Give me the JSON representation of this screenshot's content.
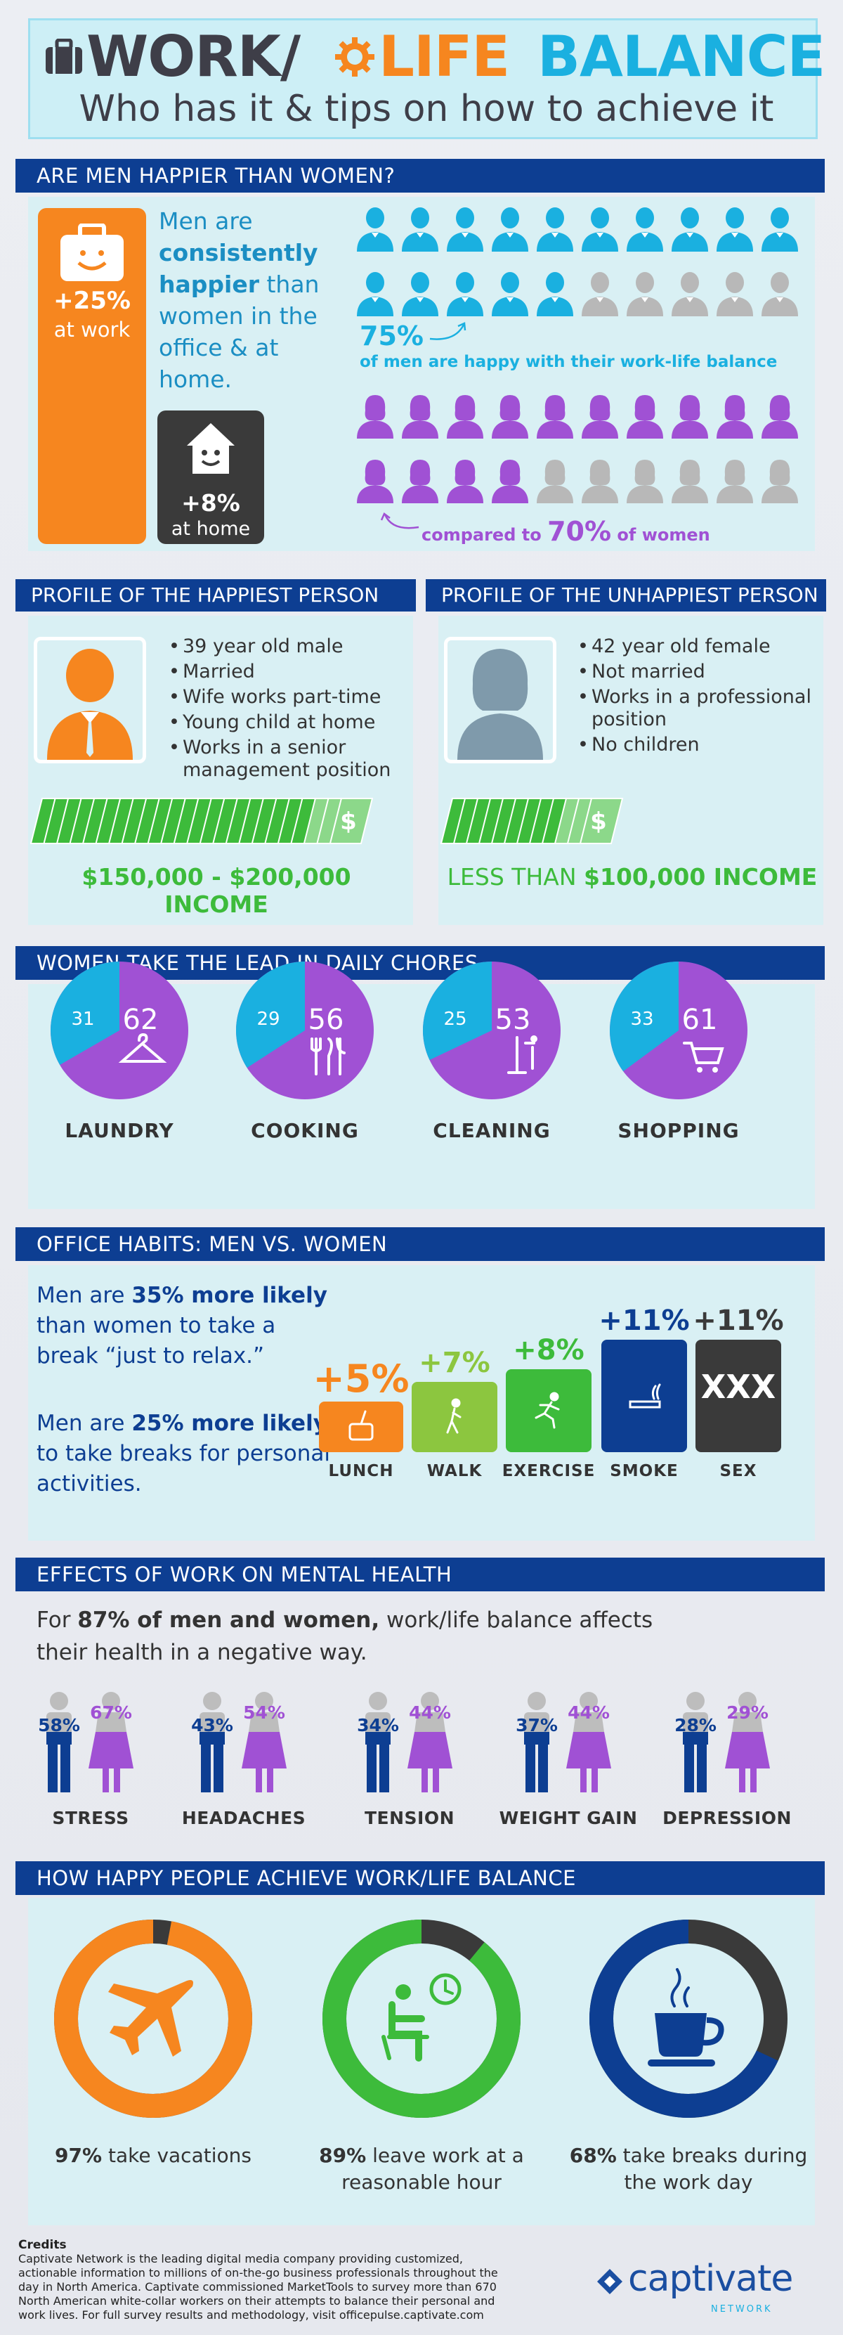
{
  "header": {
    "title_work": "WORK/",
    "title_life": "LIFE",
    "title_balance": "BALANCE",
    "subtitle": "Who has it & tips on how to achieve it"
  },
  "colors": {
    "navy": "#0d3e92",
    "orange": "#f6861f",
    "blue": "#1ab0e0",
    "purple": "#a051d4",
    "green": "#3dbb3b",
    "dark": "#3a3a3a",
    "gray": "#b8b8b8"
  },
  "section1": {
    "heading": "ARE MEN HAPPIER THAN WOMEN?",
    "work_pct": "+25%",
    "work_label": "at work",
    "intro_1": "Men are",
    "intro_bold": "consistently happier",
    "intro_2": "than women in the office & at home.",
    "home_pct": "+8%",
    "home_label": "at home",
    "men_pct": "75%",
    "men_caption": "of men are happy with their work-life balance",
    "women_prefix": "compared to",
    "women_pct": "70%",
    "women_suffix": "of women",
    "men_happy_fraction": 0.75,
    "women_happy_fraction": 0.7
  },
  "profiles": {
    "happiest": {
      "heading": "PROFILE OF THE HAPPIEST PERSON",
      "traits": [
        "39 year old male",
        "Married",
        "Wife works part-time",
        "Young child at home",
        "Works in a senior management position"
      ],
      "income": "$150,000 - $200,000 INCOME"
    },
    "unhappiest": {
      "heading": "PROFILE OF THE UNHAPPIEST PERSON",
      "traits": [
        "42 year old female",
        "Not married",
        "Works in a professional position",
        "No children"
      ],
      "income_prefix": "LESS THAN",
      "income_bold": "$100,000 INCOME"
    }
  },
  "chores": {
    "heading": "WOMEN TAKE THE LEAD IN DAILY CHORES",
    "items": [
      {
        "label": "LAUNDRY",
        "men": 31,
        "women": 62,
        "icon": "hanger-icon"
      },
      {
        "label": "COOKING",
        "men": 29,
        "women": 56,
        "icon": "utensils-icon"
      },
      {
        "label": "CLEANING",
        "men": 25,
        "women": 53,
        "icon": "mop-icon"
      },
      {
        "label": "SHOPPING",
        "men": 33,
        "women": 61,
        "icon": "cart-icon"
      }
    ]
  },
  "habits": {
    "heading": "OFFICE HABITS: MEN VS. WOMEN",
    "text1_a": "Men are",
    "text1_b": "35% more likely",
    "text1_c": "than women to take a break “just to relax.”",
    "text2_a": "Men are",
    "text2_b": "25% more likely",
    "text2_c": "to take breaks for personal activities.",
    "items": [
      {
        "label": "LUNCH",
        "pct": "+5%",
        "color": "#f6861f",
        "icon": "lunch-icon"
      },
      {
        "label": "WALK",
        "pct": "+7%",
        "color": "#8cc63f",
        "icon": "walk-icon"
      },
      {
        "label": "EXERCISE",
        "pct": "+8%",
        "color": "#3dbb3b",
        "icon": "exercise-icon"
      },
      {
        "label": "SMOKE",
        "pct": "+11%",
        "color": "#0d3e92",
        "icon": "cigarette-icon"
      },
      {
        "label": "SEX",
        "pct": "+11%",
        "color": "#3a3a3a",
        "icon_text": "XXX"
      }
    ]
  },
  "mental": {
    "heading": "EFFECTS OF WORK ON MENTAL HEALTH",
    "text_a": "For",
    "text_b": "87% of men and women,",
    "text_c": "work/life balance affects their health in a negative way.",
    "items": [
      {
        "label": "STRESS",
        "men": "58%",
        "women": "67%",
        "men_v": 58,
        "women_v": 67
      },
      {
        "label": "HEADACHES",
        "men": "43%",
        "women": "54%",
        "men_v": 43,
        "women_v": 54
      },
      {
        "label": "TENSION",
        "men": "34%",
        "women": "44%",
        "men_v": 34,
        "women_v": 44
      },
      {
        "label": "WEIGHT GAIN",
        "men": "37%",
        "women": "44%",
        "men_v": 37,
        "women_v": 44
      },
      {
        "label": "DEPRESSION",
        "men": "28%",
        "women": "29%",
        "men_v": 28,
        "women_v": 29
      }
    ]
  },
  "achieve": {
    "heading": "HOW HAPPY PEOPLE ACHIEVE WORK/LIFE BALANCE",
    "items": [
      {
        "bold": "97%",
        "text": "take vacations",
        "value": 97,
        "color": "#f6861f",
        "icon": "airplane-icon"
      },
      {
        "bold": "89%",
        "text": "leave work at a reasonable hour",
        "value": 89,
        "color": "#3dbb3b",
        "icon": "clock-person-icon"
      },
      {
        "bold": "68%",
        "text": "take breaks during the work day",
        "value": 68,
        "color": "#0d3e92",
        "icon": "coffee-icon"
      }
    ]
  },
  "credits": {
    "title": "Credits",
    "body": "Captivate Network is the leading digital media company providing customized, actionable information to millions of on-the-go business professionals throughout the day in North America. Captivate commissioned MarketTools to survey more than 670 North American white-collar workers on their attempts to balance their personal and work lives. For full survey results and methodology, visit officepulse.captivate.com",
    "brand": "captivate",
    "brand_sub": "NETWORK"
  }
}
